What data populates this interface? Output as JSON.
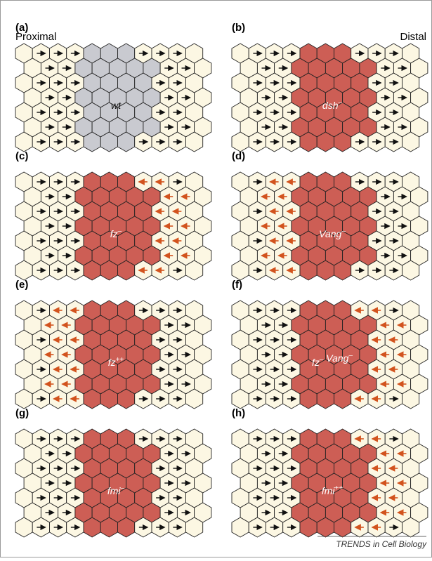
{
  "proximal": "Proximal",
  "distal": "Distal",
  "panels": [
    {
      "letter": "(a)",
      "clone": [
        {
          "text": "wt",
          "sup": ""
        }
      ]
    },
    {
      "letter": "(b)",
      "clone": [
        {
          "text": "dsh",
          "sup": "–"
        }
      ]
    },
    {
      "letter": "(c)",
      "clone": [
        {
          "text": "fz",
          "sup": "–"
        }
      ]
    },
    {
      "letter": "(d)",
      "clone": [
        {
          "text": "Vang",
          "sup": "–"
        }
      ]
    },
    {
      "letter": "(e)",
      "clone": [
        {
          "text": "fz",
          "sup": "++"
        }
      ]
    },
    {
      "letter": "(f)",
      "clone": [
        {
          "text": "fz",
          "sup": "–"
        },
        {
          "text": " Vang",
          "sup": "–"
        }
      ]
    },
    {
      "letter": "(g)",
      "clone": [
        {
          "text": "fmi",
          "sup": "–"
        }
      ]
    },
    {
      "letter": "(h)",
      "clone": [
        {
          "text": "fmi",
          "sup": "++"
        }
      ]
    }
  ],
  "footer": "TRENDS in Cell Biology"
}
